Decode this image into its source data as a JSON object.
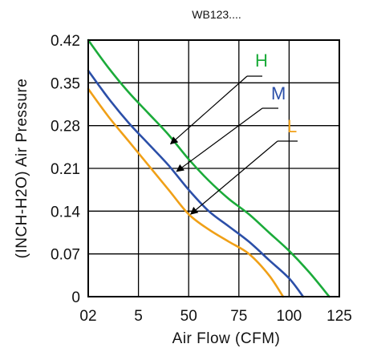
{
  "chart_data": {
    "type": "line",
    "title": "WB123....",
    "xlabel": "Air Flow (CFM)",
    "ylabel": "(INCH-H2O) Air Pressure",
    "x_ticks": [
      "02",
      "5",
      "50",
      "75",
      "100",
      "125"
    ],
    "y_ticks": [
      "0.42",
      "0.35",
      "0.28",
      "0.21",
      "0.14",
      "0.07",
      "0"
    ],
    "xlim": [
      0,
      125
    ],
    "ylim": [
      0,
      0.42
    ],
    "grid": true,
    "legend": "inline-labels",
    "series": [
      {
        "name": "H",
        "color": "#1bab3a",
        "x": [
          0,
          10,
          20,
          30,
          40,
          50,
          60,
          70,
          80,
          90,
          100,
          110,
          120
        ],
        "y": [
          0.42,
          0.375,
          0.335,
          0.3,
          0.265,
          0.225,
          0.19,
          0.16,
          0.135,
          0.105,
          0.075,
          0.04,
          0.0
        ]
      },
      {
        "name": "M",
        "color": "#2b4fa8",
        "x": [
          0,
          10,
          20,
          30,
          40,
          50,
          60,
          70,
          80,
          90,
          100,
          107
        ],
        "y": [
          0.37,
          0.325,
          0.285,
          0.25,
          0.215,
          0.175,
          0.14,
          0.115,
          0.09,
          0.06,
          0.03,
          0.0
        ]
      },
      {
        "name": "L",
        "color": "#f0a017",
        "x": [
          0,
          10,
          20,
          30,
          40,
          50,
          60,
          70,
          80,
          90,
          97
        ],
        "y": [
          0.34,
          0.295,
          0.255,
          0.215,
          0.175,
          0.135,
          0.11,
          0.09,
          0.07,
          0.035,
          0.0
        ]
      }
    ],
    "annotations": [
      {
        "label": "H",
        "points_to_series": "H",
        "arrow_tip": [
          41,
          0.25
        ]
      },
      {
        "label": "M",
        "points_to_series": "M",
        "arrow_tip": [
          44,
          0.205
        ]
      },
      {
        "label": "L",
        "points_to_series": "L",
        "arrow_tip": [
          51,
          0.135
        ]
      }
    ]
  }
}
